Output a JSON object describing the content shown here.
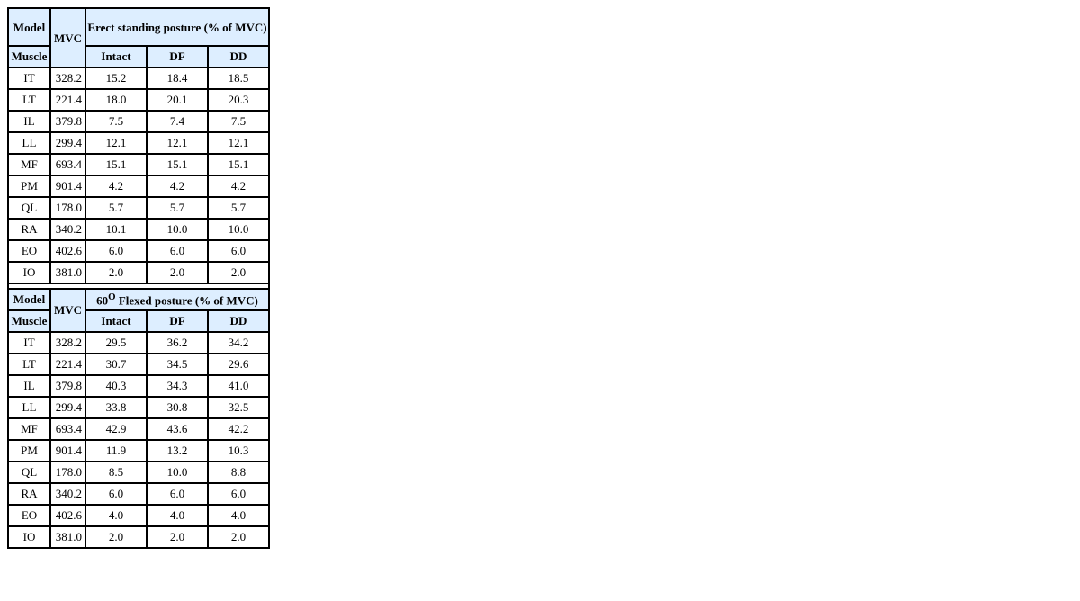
{
  "sections": [
    {
      "model_label": "Model",
      "muscle_label": "Muscle",
      "mvc_label": "MVC",
      "title": "Erect standing posture (% of MVC)",
      "title_pre": "",
      "title_sup": "",
      "columns": [
        "Intact",
        "DF",
        "DD"
      ],
      "rows": [
        [
          "IT",
          "328.2",
          "15.2",
          "18.4",
          "18.5"
        ],
        [
          "LT",
          "221.4",
          "18.0",
          "20.1",
          "20.3"
        ],
        [
          "IL",
          "379.8",
          "7.5",
          "7.4",
          "7.5"
        ],
        [
          "LL",
          "299.4",
          "12.1",
          "12.1",
          "12.1"
        ],
        [
          "MF",
          "693.4",
          "15.1",
          "15.1",
          "15.1"
        ],
        [
          "PM",
          "901.4",
          "4.2",
          "4.2",
          "4.2"
        ],
        [
          "QL",
          "178.0",
          "5.7",
          "5.7",
          "5.7"
        ],
        [
          "RA",
          "340.2",
          "10.1",
          "10.0",
          "10.0"
        ],
        [
          "EO",
          "402.6",
          "6.0",
          "6.0",
          "6.0"
        ],
        [
          "IO",
          "381.0",
          "2.0",
          "2.0",
          "2.0"
        ]
      ]
    },
    {
      "model_label": "Model",
      "muscle_label": "Muscle",
      "mvc_label": "MVC",
      "title": " Flexed posture (% of MVC)",
      "title_pre": "60",
      "title_sup": "O",
      "columns": [
        "Intact",
        "DF",
        "DD"
      ],
      "rows": [
        [
          "IT",
          "328.2",
          "29.5",
          "36.2",
          "34.2"
        ],
        [
          "LT",
          "221.4",
          "30.7",
          "34.5",
          "29.6"
        ],
        [
          "IL",
          "379.8",
          "40.3",
          "34.3",
          "41.0"
        ],
        [
          "LL",
          "299.4",
          "33.8",
          "30.8",
          "32.5"
        ],
        [
          "MF",
          "693.4",
          "42.9",
          "43.6",
          "42.2"
        ],
        [
          "PM",
          "901.4",
          "11.9",
          "13.2",
          "10.3"
        ],
        [
          "QL",
          "178.0",
          "8.5",
          "10.0",
          "8.8"
        ],
        [
          "RA",
          "340.2",
          "6.0",
          "6.0",
          "6.0"
        ],
        [
          "EO",
          "402.6",
          "4.0",
          "4.0",
          "4.0"
        ],
        [
          "IO",
          "381.0",
          "2.0",
          "2.0",
          "2.0"
        ]
      ]
    }
  ]
}
